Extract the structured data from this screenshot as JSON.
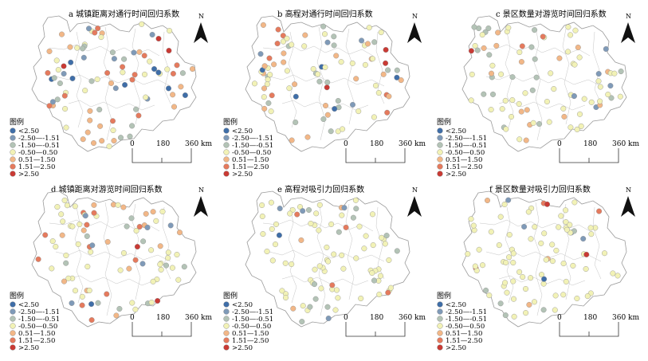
{
  "panels": [
    {
      "id": "a",
      "title": "a 城镇距离对通行时间回归系数"
    },
    {
      "id": "b",
      "title": "b 高程对通行时间回归系数"
    },
    {
      "id": "c",
      "title": "c 景区数量对游览时间回归系数"
    },
    {
      "id": "d",
      "title": "d 城镇距离对游览时间回归系数"
    },
    {
      "id": "e",
      "title": "e 高程对吸引力回归系数"
    },
    {
      "id": "f",
      "title": "f 景区数量对吸引力回归系数"
    }
  ],
  "legend": {
    "title": "图例",
    "classes": [
      {
        "label": "<2.50",
        "color": "#3f6ea8"
      },
      {
        "label": "-2.50—-1.51",
        "color": "#7f9ab8"
      },
      {
        "label": "-1.50—-0.51",
        "color": "#b3c3b6"
      },
      {
        "label": "-0.50—0.50",
        "color": "#f2f2b6"
      },
      {
        "label": "0.51—1.50",
        "color": "#f2b787"
      },
      {
        "label": "1.51—2.50",
        "color": "#e57a5d"
      },
      {
        "label": ">2.50",
        "color": "#c93a34"
      }
    ]
  },
  "scalebar": {
    "ticks": [
      "0",
      "180",
      "360 km"
    ]
  },
  "north_label": "N"
}
